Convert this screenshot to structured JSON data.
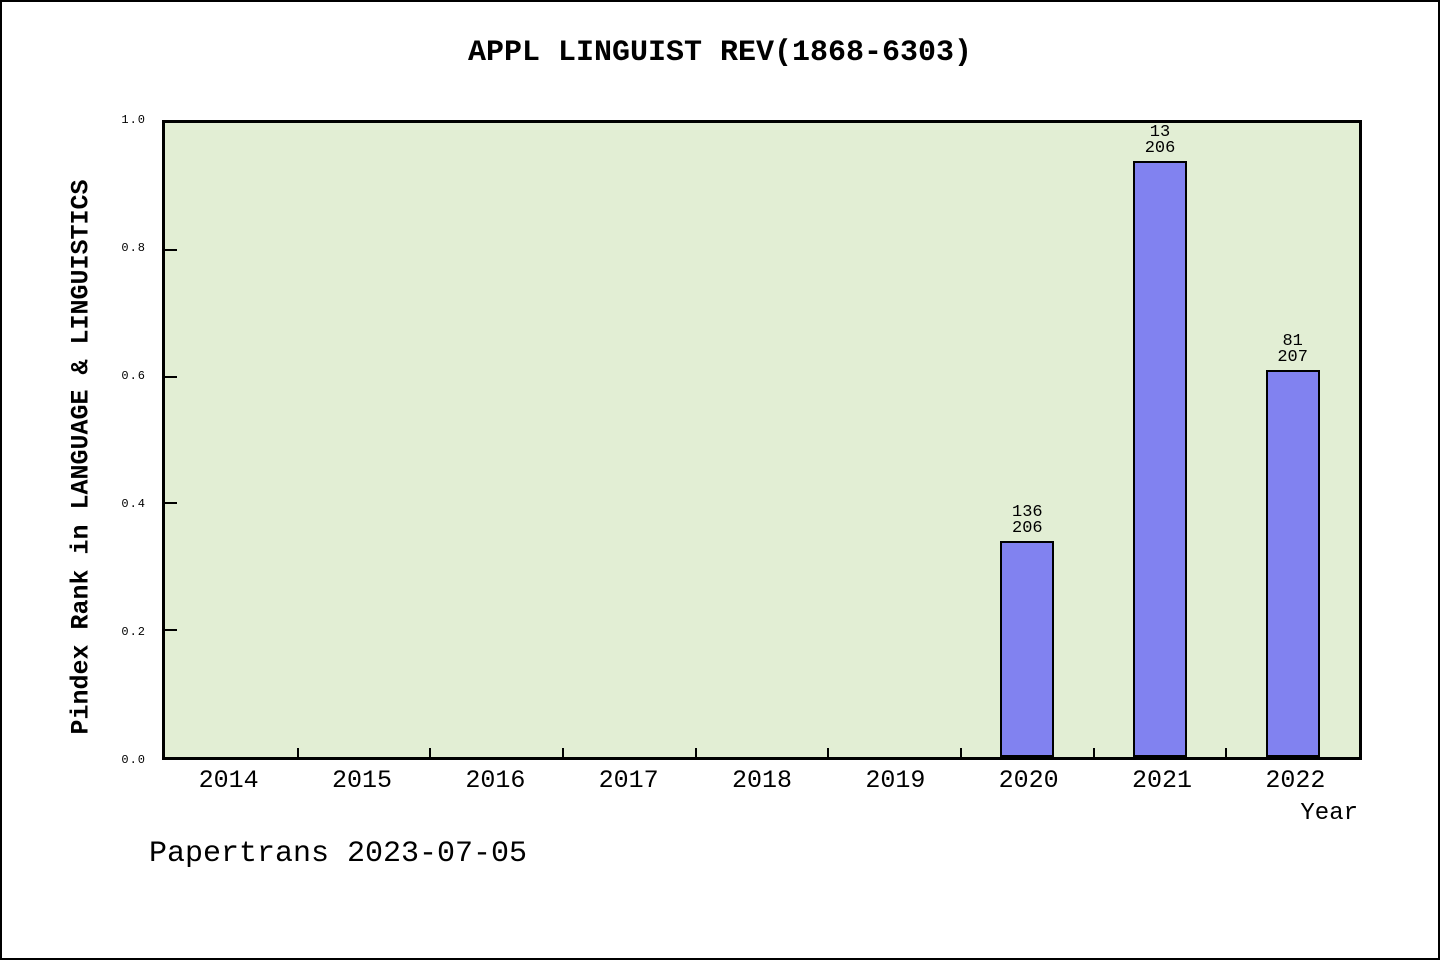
{
  "title": "APPL LINGUIST REV(1868-6303)",
  "footer": "Papertrans 2023-07-05",
  "chart_data": {
    "type": "bar",
    "title": "APPL LINGUIST REV(1868-6303)",
    "xlabel": "Year",
    "ylabel": "Pindex Rank in LANGUAGE & LINGUISTICS",
    "ylim": [
      0.0,
      1.0
    ],
    "yticks": [
      0.0,
      0.2,
      0.4,
      0.6,
      0.8,
      1.0
    ],
    "ytick_labels": [
      "1.0",
      "0.8",
      "0.6",
      "0.4",
      "0.2",
      "0.0"
    ],
    "categories": [
      "2014",
      "2015",
      "2016",
      "2017",
      "2018",
      "2019",
      "2020",
      "2021",
      "2022"
    ],
    "bars": [
      {
        "category": "2020",
        "rank": "136",
        "total": "206",
        "value": 0.34
      },
      {
        "category": "2021",
        "rank": "13",
        "total": "206",
        "value": 0.94
      },
      {
        "category": "2022",
        "rank": "81",
        "total": "207",
        "value": 0.61
      }
    ],
    "grid": "off",
    "legend_position": "none",
    "bar_color": "#8182f0",
    "bar_border_color": "#000000",
    "plot_bg_color": "#e2eed4",
    "figure_bg_color": "#ffffff"
  }
}
